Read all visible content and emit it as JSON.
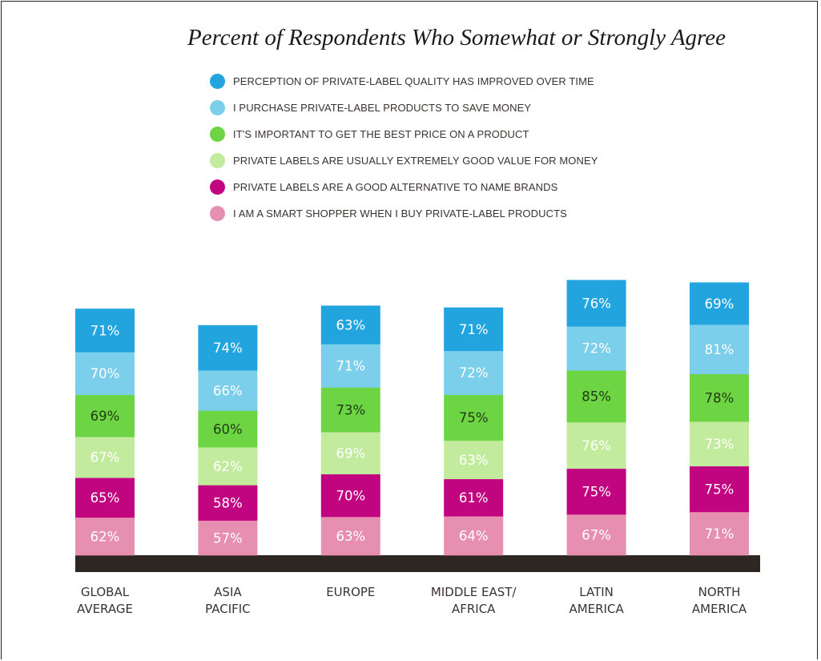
{
  "chart_data": {
    "type": "bar",
    "stacked": true,
    "title": "Percent of Respondents Who Somewhat or Strongly Agree",
    "categories": [
      "GLOBAL AVERAGE",
      "ASIA PACIFIC",
      "EUROPE",
      "MIDDLE EAST/ AFRICA",
      "LATIN AMERICA",
      "NORTH AMERICA"
    ],
    "category_lines": [
      [
        "GLOBAL",
        "AVERAGE"
      ],
      [
        "ASIA",
        "PACIFIC"
      ],
      [
        "EUROPE"
      ],
      [
        "MIDDLE EAST/",
        "AFRICA"
      ],
      [
        "LATIN",
        "AMERICA"
      ],
      [
        "NORTH",
        "AMERICA"
      ]
    ],
    "series": [
      {
        "name": "I AM A SMART SHOPPER WHEN I BUY PRIVATE-LABEL PRODUCTS",
        "color": "#e78fb1",
        "label_color": "#ffffff",
        "values": [
          62,
          57,
          63,
          64,
          67,
          71
        ]
      },
      {
        "name": "PRIVATE LABELS ARE A GOOD ALTERNATIVE TO NAME BRANDS",
        "color": "#c1047f",
        "label_color": "#ffffff",
        "values": [
          65,
          58,
          70,
          61,
          75,
          75
        ]
      },
      {
        "name": "PRIVATE LABELS ARE USUALLY EXTREMELY GOOD VALUE FOR MONEY",
        "color": "#c2eb9e",
        "label_color": "#ffffff",
        "values": [
          67,
          62,
          69,
          63,
          76,
          73
        ]
      },
      {
        "name": "IT'S IMPORTANT TO GET THE BEST PRICE ON A PRODUCT",
        "color": "#6dd543",
        "label_color": "#1f3a14",
        "values": [
          69,
          60,
          73,
          75,
          85,
          78
        ]
      },
      {
        "name": "I PURCHASE PRIVATE-LABEL PRODUCTS TO SAVE MONEY",
        "color": "#7ccfea",
        "label_color": "#ffffff",
        "values": [
          70,
          66,
          71,
          72,
          72,
          81
        ]
      },
      {
        "name": "PERCEPTION OF PRIVATE-LABEL QUALITY HAS IMPROVED OVER TIME",
        "color": "#22a5df",
        "label_color": "#ffffff",
        "values": [
          71,
          74,
          63,
          71,
          76,
          69
        ]
      }
    ],
    "value_suffix": "%"
  },
  "legend": [
    {
      "label": "PERCEPTION OF PRIVATE-LABEL QUALITY HAS IMPROVED OVER TIME",
      "color": "#22a5df"
    },
    {
      "label": "I PURCHASE PRIVATE-LABEL PRODUCTS TO SAVE MONEY",
      "color": "#7ccfea"
    },
    {
      "label": "IT'S IMPORTANT TO GET THE BEST PRICE ON A PRODUCT",
      "color": "#6dd543"
    },
    {
      "label": "PRIVATE LABELS ARE USUALLY EXTREMELY GOOD VALUE FOR MONEY",
      "color": "#c2eb9e"
    },
    {
      "label": "PRIVATE LABELS ARE A GOOD ALTERNATIVE TO NAME BRANDS",
      "color": "#c1047f"
    },
    {
      "label": "I AM A SMART SHOPPER WHEN I BUY PRIVATE-LABEL PRODUCTS",
      "color": "#e78fb1"
    }
  ]
}
